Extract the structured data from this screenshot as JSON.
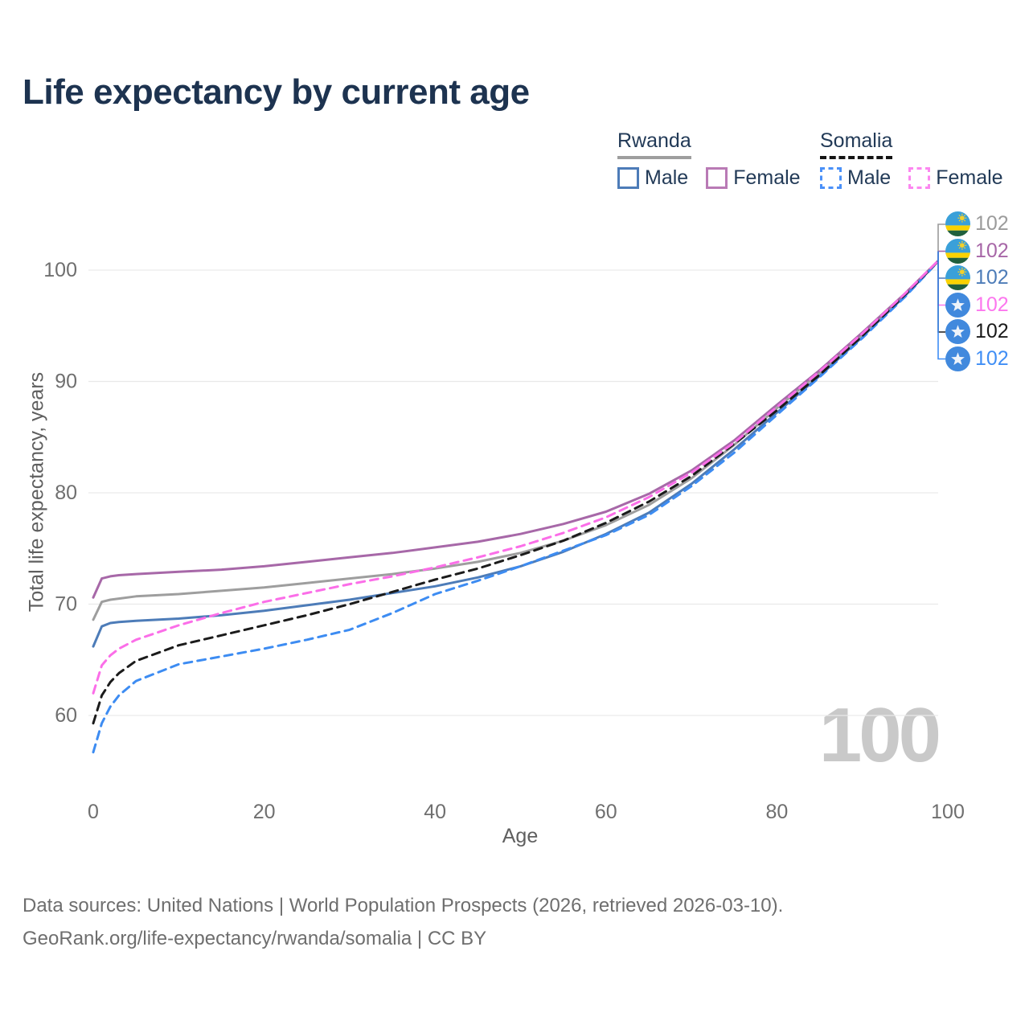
{
  "title": "Life expectancy by current age",
  "legend": {
    "groups": [
      {
        "country": "Rwanda",
        "line_style": "solid",
        "line_color": "#9e9e9e",
        "items": [
          {
            "label": "Male",
            "color": "#4d7cb8",
            "style": "solid"
          },
          {
            "label": "Female",
            "color": "#b97ab5",
            "style": "solid"
          }
        ]
      },
      {
        "country": "Somalia",
        "line_style": "dashed",
        "line_color": "#141414",
        "items": [
          {
            "label": "Male",
            "color": "#4a90f8",
            "style": "dashed"
          },
          {
            "label": "Female",
            "color": "#fc87f0",
            "style": "dashed"
          }
        ]
      }
    ]
  },
  "watermark_age": "100",
  "footer": {
    "line1": "Data sources: United Nations | World Population Prospects (2026, retrieved 2026-03-10).",
    "line2": "GeoRank.org/life-expectancy/rwanda/somalia | CC BY"
  },
  "chart_data": {
    "type": "line",
    "title": "Life expectancy by current age",
    "xlabel": "Age",
    "ylabel": "Total life expectancy, years",
    "xlim": [
      0,
      100
    ],
    "ylim": [
      56,
      104
    ],
    "x_ticks": [
      0,
      20,
      40,
      60,
      80,
      100
    ],
    "y_ticks": [
      60,
      70,
      80,
      90,
      100
    ],
    "grid": "horizontal",
    "legend_position": "top-right",
    "x": [
      0,
      1,
      2,
      3,
      5,
      10,
      15,
      20,
      25,
      30,
      35,
      40,
      45,
      50,
      55,
      60,
      65,
      70,
      75,
      80,
      85,
      90,
      95,
      100
    ],
    "series": [
      {
        "name": "Rwanda",
        "country": "Rwanda",
        "sex": "both",
        "color": "#9e9e9e",
        "dash": "solid",
        "end_label": "102",
        "end_label_color": "#9b9b9b",
        "flag": "rwanda",
        "values": [
          68.6,
          70.2,
          70.4,
          70.5,
          70.7,
          70.9,
          71.2,
          71.5,
          71.9,
          72.3,
          72.7,
          73.2,
          73.8,
          74.6,
          75.7,
          77.1,
          78.9,
          81.3,
          84.3,
          87.6,
          90.8,
          94.2,
          97.8,
          101.7
        ]
      },
      {
        "name": "Rwanda Female",
        "country": "Rwanda",
        "sex": "female",
        "color": "#a768a8",
        "dash": "solid",
        "end_label": "102",
        "end_label_color": "#a766a7",
        "flag": "rwanda",
        "values": [
          70.6,
          72.3,
          72.5,
          72.6,
          72.7,
          72.9,
          73.1,
          73.4,
          73.8,
          74.2,
          74.6,
          75.1,
          75.6,
          76.3,
          77.2,
          78.3,
          79.9,
          82.0,
          84.7,
          87.9,
          91.0,
          94.4,
          97.9,
          101.7
        ]
      },
      {
        "name": "Rwanda Male",
        "country": "Rwanda",
        "sex": "male",
        "color": "#4d7cb8",
        "dash": "solid",
        "end_label": "102",
        "end_label_color": "#4d7cb8",
        "flag": "rwanda",
        "values": [
          66.2,
          68.0,
          68.3,
          68.4,
          68.5,
          68.7,
          69.0,
          69.4,
          69.9,
          70.4,
          71.0,
          71.6,
          72.4,
          73.4,
          74.7,
          76.3,
          78.2,
          80.8,
          83.9,
          87.2,
          90.5,
          94.0,
          97.7,
          101.7
        ]
      },
      {
        "name": "Somalia Female",
        "country": "Somalia",
        "sex": "female",
        "color": "#fb6ee8",
        "dash": "dashed",
        "end_label": "102",
        "end_label_color": "#fc77ee",
        "flag": "somalia",
        "values": [
          62.0,
          64.5,
          65.4,
          66.0,
          66.8,
          68.1,
          69.2,
          70.2,
          71.0,
          71.8,
          72.5,
          73.3,
          74.2,
          75.2,
          76.4,
          77.8,
          79.6,
          81.8,
          84.5,
          87.7,
          90.9,
          94.3,
          97.9,
          101.7
        ]
      },
      {
        "name": "Somalia",
        "country": "Somalia",
        "sex": "both",
        "color": "#1b1b1b",
        "dash": "dashed",
        "end_label": "102",
        "end_label_color": "#1a1a1a",
        "flag": "somalia",
        "values": [
          59.3,
          61.8,
          63.0,
          63.8,
          64.9,
          66.3,
          67.2,
          68.1,
          69.0,
          70.0,
          71.1,
          72.2,
          73.2,
          74.4,
          75.7,
          77.3,
          79.2,
          81.5,
          84.4,
          87.4,
          90.6,
          94.1,
          97.8,
          101.7
        ]
      },
      {
        "name": "Somalia Male",
        "country": "Somalia",
        "sex": "male",
        "color": "#3d8cf2",
        "dash": "dashed",
        "end_label": "102",
        "end_label_color": "#3f8ef5",
        "flag": "somalia",
        "values": [
          56.7,
          59.3,
          60.8,
          61.8,
          63.1,
          64.6,
          65.3,
          66.0,
          66.8,
          67.7,
          69.2,
          70.9,
          72.1,
          73.4,
          74.8,
          76.2,
          78.0,
          80.6,
          83.6,
          87.0,
          90.4,
          93.9,
          97.6,
          101.7
        ]
      }
    ]
  }
}
